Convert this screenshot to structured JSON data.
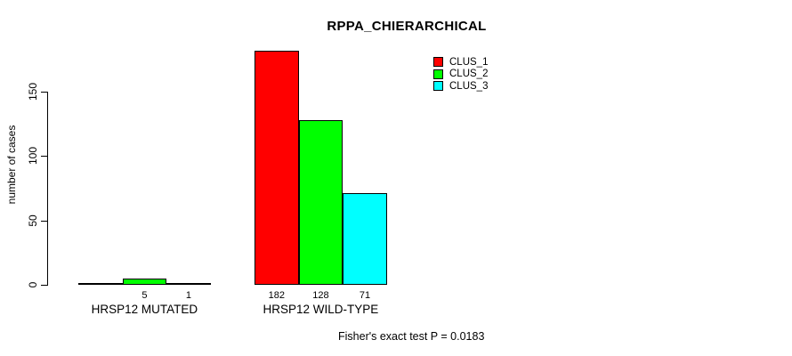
{
  "title": "RPPA_CHIERARCHICAL",
  "footer_note": "Fisher's exact test P = 0.0183",
  "colors": {
    "background": "#FFFFFF",
    "axis": "#000000",
    "bar_border": "#000000",
    "clus_1": "#FF0000",
    "clus_2": "#00FF00",
    "clus_3": "#00FFFF"
  },
  "chart_data": {
    "type": "bar",
    "title": "RPPA_CHIERARCHICAL",
    "xlabel": "",
    "ylabel": "number of cases",
    "ylim": [
      0,
      150
    ],
    "yticks": [
      0,
      50,
      100,
      150
    ],
    "grid": false,
    "legend_position": "top-right",
    "categories": [
      "HRSP12 MUTATED",
      "HRSP12 WILD-TYPE"
    ],
    "series": [
      {
        "name": "CLUS_1",
        "color": "#FF0000",
        "values": [
          0,
          182
        ]
      },
      {
        "name": "CLUS_2",
        "color": "#00FF00",
        "values": [
          5,
          128
        ]
      },
      {
        "name": "CLUS_3",
        "color": "#00FFFF",
        "values": [
          1,
          71
        ]
      }
    ],
    "bar_labels": [
      [
        "",
        "5",
        "1"
      ],
      [
        "182",
        "128",
        "71"
      ]
    ],
    "annotation": "Fisher's exact test P = 0.0183"
  }
}
